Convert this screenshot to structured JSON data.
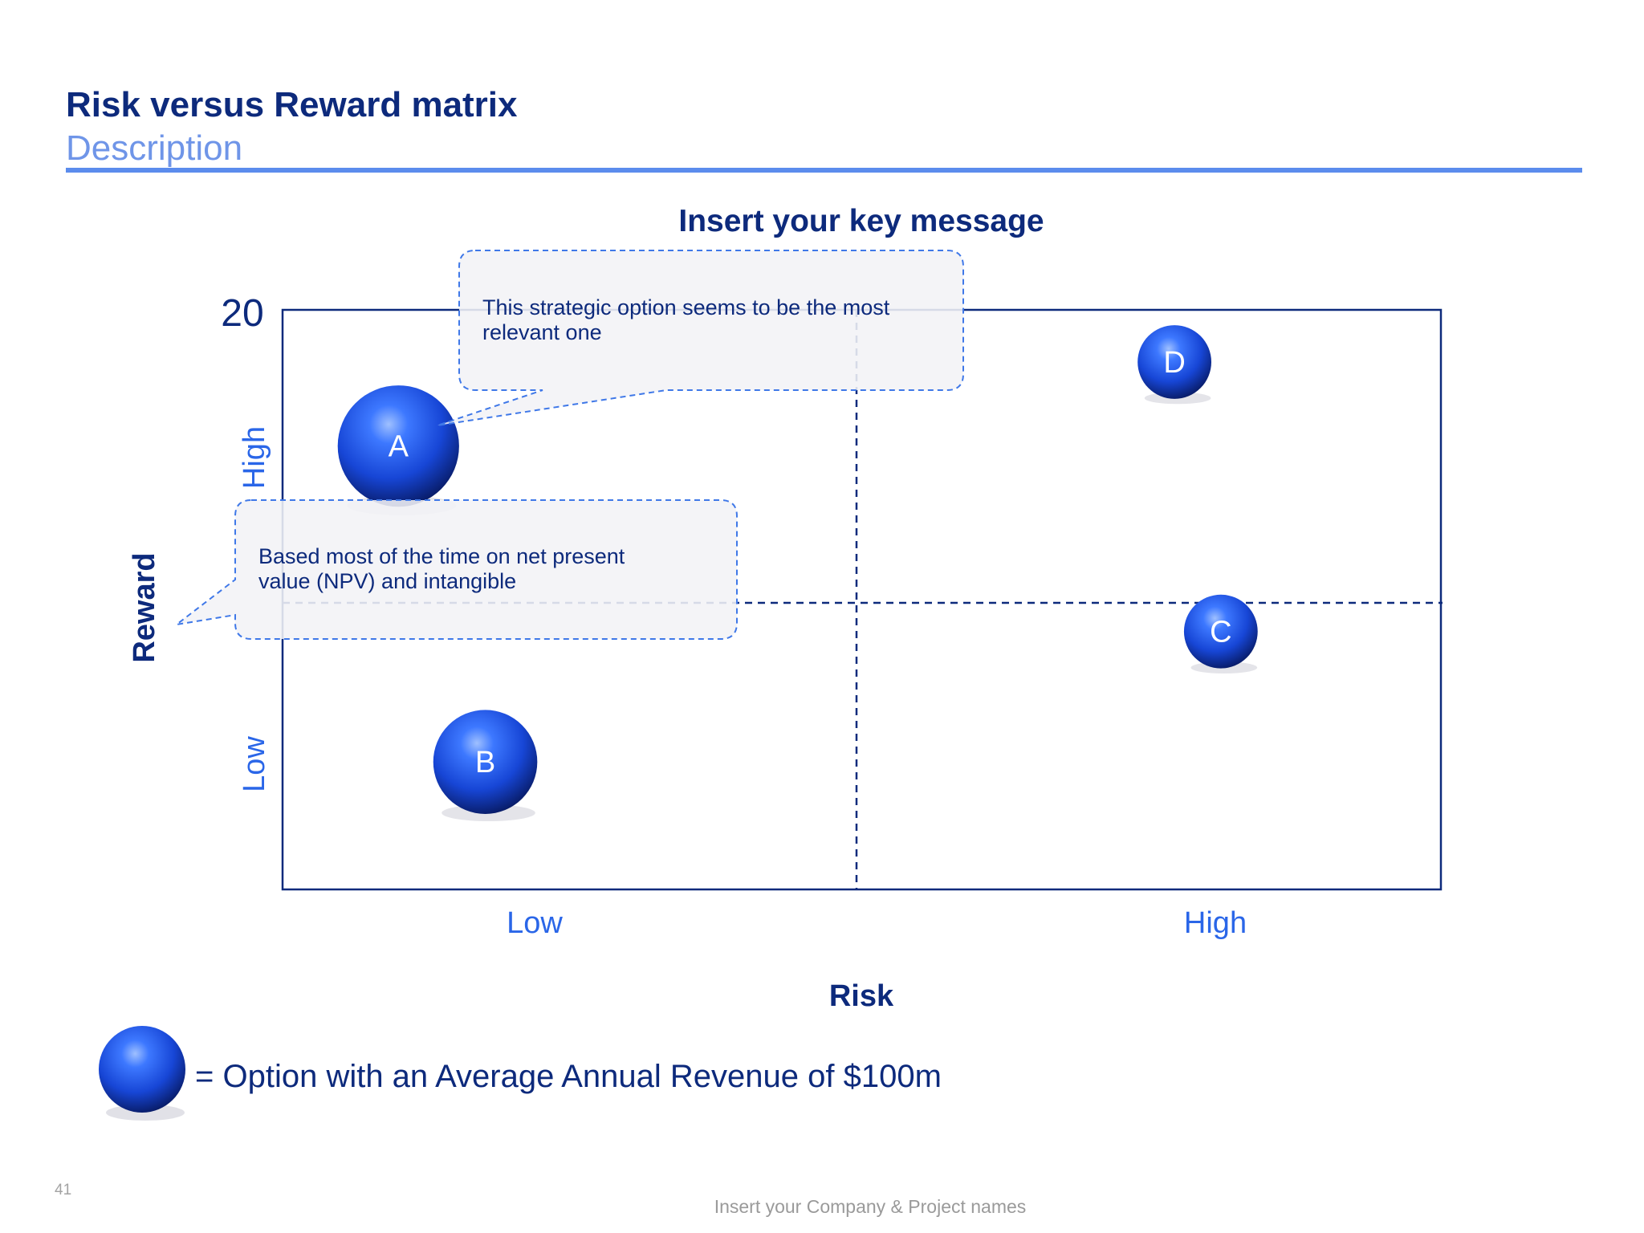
{
  "slide": {
    "title": "Risk versus Reward matrix",
    "subtitle": "Description",
    "page_number": "41",
    "footer": "Insert your Company & Project names"
  },
  "colors": {
    "navy": "#0d2a7c",
    "accent_blue": "#2a66e8",
    "light_blue": "#6f95e8",
    "bubble": "#1f52e0",
    "callout_fill": "#f4f4f6",
    "callout_border": "#3f78e8"
  },
  "chart_data": {
    "type": "scatter",
    "title": "Insert your key message",
    "xlabel": "Risk",
    "ylabel": "Reward",
    "y_max_label": "20",
    "xlim": [
      0,
      20
    ],
    "ylim": [
      0,
      20
    ],
    "x_tick_labels": [
      "Low",
      "High"
    ],
    "y_tick_labels": [
      "Low",
      "High"
    ],
    "divider_x": 10,
    "divider_y": 10,
    "grid": false,
    "points": [
      {
        "label": "A",
        "x": 2,
        "y": 15.3,
        "size": 1.4
      },
      {
        "label": "B",
        "x": 3.5,
        "y": 4.4,
        "size": 1.2
      },
      {
        "label": "C",
        "x": 16.2,
        "y": 8.9,
        "size": 0.85
      },
      {
        "label": "D",
        "x": 15.4,
        "y": 18.2,
        "size": 0.85
      }
    ],
    "callouts": [
      {
        "text_lines": [
          "This strategic option seems to be the most",
          "relevant one"
        ],
        "points_to": "A"
      },
      {
        "text_lines": [
          "Based most of the time on net present",
          "value (NPV) and intangible"
        ],
        "points_to": "Reward axis"
      }
    ],
    "legend": {
      "symbol": "bubble",
      "text": "= Option with an Average Annual Revenue of $100m",
      "placement": "bottom-left"
    }
  }
}
